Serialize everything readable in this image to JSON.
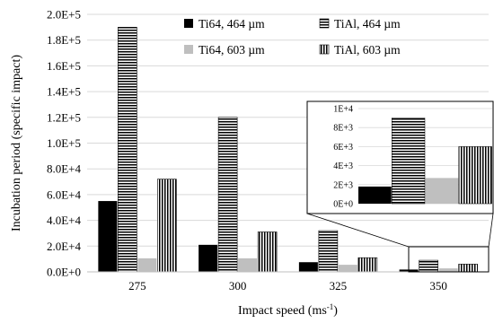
{
  "chart_data": {
    "type": "bar",
    "categories": [
      "275",
      "300",
      "325",
      "350"
    ],
    "series": [
      {
        "name": "Ti64, 464 µm",
        "values": [
          55000,
          21000,
          7500,
          1800
        ],
        "color": "#000000",
        "pattern": "solid"
      },
      {
        "name": "TiAl, 464 µm",
        "values": [
          190000,
          120000,
          32000,
          9000
        ],
        "color": "#000000",
        "pattern": "horizontal-stripes"
      },
      {
        "name": "Ti64, 603 µm",
        "values": [
          10500,
          10500,
          5500,
          2700
        ],
        "color": "#bfbfbf",
        "pattern": "solid"
      },
      {
        "name": "TiAl, 603 µm",
        "values": [
          72000,
          31000,
          11000,
          6000
        ],
        "color": "#000000",
        "pattern": "vertical-stripes"
      }
    ],
    "xlabel": "Impact speed (ms-1)",
    "ylabel": "Incubation period (specific impact)",
    "ylim": [
      0,
      200000
    ],
    "yticks": [
      "0.0E+0",
      "2.0E+4",
      "4.0E+4",
      "6.0E+4",
      "8.0E+4",
      "1.0E+5",
      "1.2E+5",
      "1.4E+5",
      "1.6E+5",
      "1.8E+5",
      "2.0E+5"
    ],
    "grid": true,
    "legend_position": "top-right",
    "inset": {
      "category": "350",
      "ylim": [
        0,
        10000
      ],
      "yticks": [
        "0E+0",
        "2E+3",
        "4E+3",
        "6E+3",
        "8E+3",
        "1E+4"
      ]
    }
  }
}
